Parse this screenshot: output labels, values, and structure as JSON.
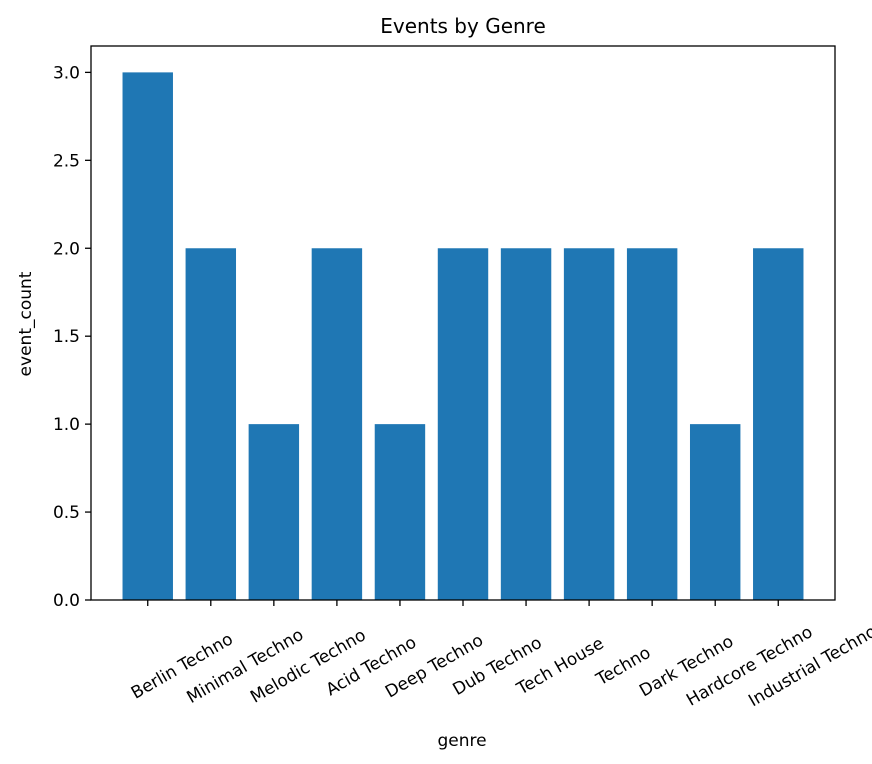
{
  "chart_data": {
    "type": "bar",
    "title": "Events by Genre",
    "xlabel": "genre",
    "ylabel": "event_count",
    "categories": [
      "Berlin Techno",
      "Minimal Techno",
      "Melodic Techno",
      "Acid Techno",
      "Deep Techno",
      "Dub Techno",
      "Tech House",
      "Techno",
      "Dark Techno",
      "Hardcore Techno",
      "Industrial Techno"
    ],
    "values": [
      3,
      2,
      1,
      2,
      1,
      2,
      2,
      2,
      2,
      1,
      2
    ],
    "ylim": [
      0,
      3.15
    ],
    "yticks": [
      "0.0",
      "0.5",
      "1.0",
      "1.5",
      "2.0",
      "2.5",
      "3.0"
    ],
    "bar_color": "#1f77b4",
    "grid": false,
    "legend": "none"
  }
}
